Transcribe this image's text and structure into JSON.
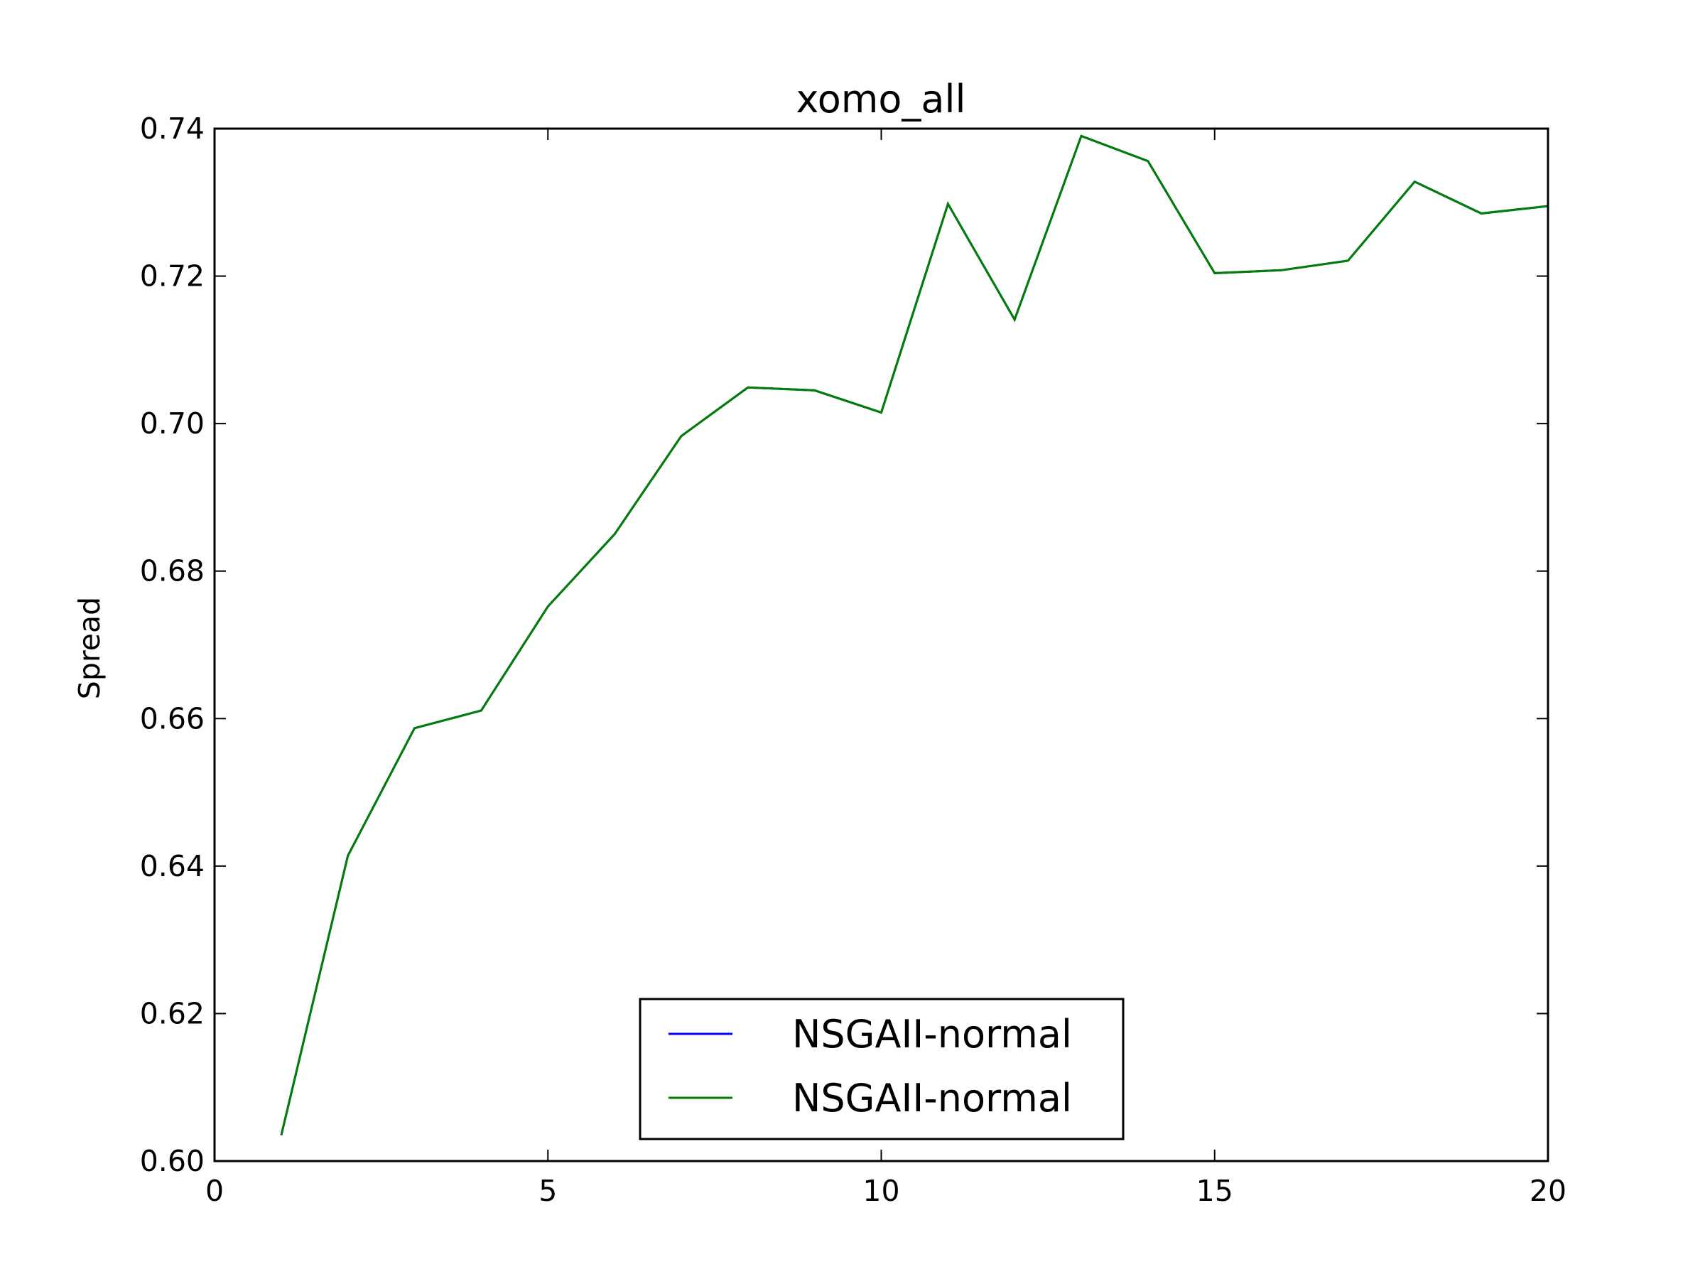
{
  "chart_data": {
    "type": "line",
    "title": "xomo_all",
    "xlabel": "",
    "ylabel": "Spread",
    "xlim": [
      0,
      20
    ],
    "ylim": [
      0.6,
      0.74
    ],
    "xticks": [
      0,
      5,
      10,
      15,
      20
    ],
    "xtick_labels": [
      "0",
      "5",
      "10",
      "15",
      "20"
    ],
    "yticks": [
      0.6,
      0.62,
      0.64,
      0.66,
      0.68,
      0.7,
      0.72,
      0.74
    ],
    "ytick_labels": [
      "0.60",
      "0.62",
      "0.64",
      "0.66",
      "0.68",
      "0.70",
      "0.72",
      "0.74"
    ],
    "grid": false,
    "legend_position": "lower-center",
    "x": [
      1,
      2,
      3,
      4,
      5,
      6,
      7,
      8,
      9,
      10,
      11,
      12,
      13,
      14,
      15,
      16,
      17,
      18,
      19,
      20
    ],
    "series": [
      {
        "name": "NSGAII-normal",
        "color": "#0000ff",
        "values": [
          0.6035,
          0.6414,
          0.6587,
          0.6611,
          0.6752,
          0.685,
          0.6983,
          0.7049,
          0.7045,
          0.7015,
          0.7298,
          0.7141,
          0.739,
          0.7356,
          0.7204,
          0.7208,
          0.7221,
          0.7328,
          0.7285,
          0.7295
        ]
      },
      {
        "name": "NSGAII-normal",
        "color": "#007f00",
        "values": [
          0.6035,
          0.6414,
          0.6587,
          0.6611,
          0.6752,
          0.685,
          0.6983,
          0.7049,
          0.7045,
          0.7015,
          0.7298,
          0.7141,
          0.739,
          0.7356,
          0.7204,
          0.7208,
          0.7221,
          0.7328,
          0.7285,
          0.7295
        ]
      }
    ]
  }
}
